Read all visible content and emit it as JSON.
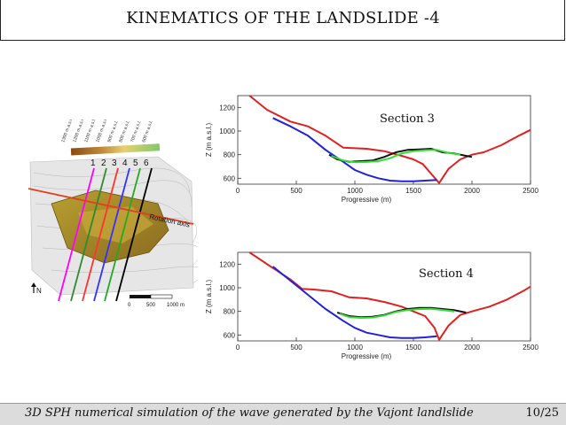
{
  "header": {
    "title": "KINEMATICS OF THE LANDSLIDE -4"
  },
  "footer": {
    "caption": "3D SPH numerical simulation of the wave generated by the Vajont landlslide",
    "page": "10/25"
  },
  "map": {
    "section_numbers": [
      "1",
      "2",
      "3",
      "4",
      "5",
      "6"
    ],
    "contour_labels": [
      "1300 m a.s.l.",
      "1200 m a.s.l.",
      "1100 m a.s.l.",
      "1000 m a.s.l.",
      "900 m a.s.l.",
      "800 m a.s.l.",
      "700 m a.s.l.",
      "600 m a.s.l."
    ],
    "rotation_axis_label": "Rotation axis",
    "north_label": "N",
    "scale_labels": [
      "0",
      "500",
      "1000 m"
    ],
    "line_colors": [
      "#ff00ff",
      "#2e8b2e",
      "#ff3333",
      "#3333ff",
      "#22aa22",
      "#000000"
    ]
  },
  "chart_data": [
    {
      "type": "line",
      "annotation": "Section 3",
      "xlabel": "Progressive (m)",
      "ylabel": "Z (m a.s.l.)",
      "xlim": [
        0,
        2500
      ],
      "ylim": [
        550,
        1300
      ],
      "xticks": [
        "0",
        "500",
        "1000",
        "1500",
        "2000",
        "2500"
      ],
      "yticks": [
        "600",
        "800",
        "1000",
        "1200"
      ],
      "series": [
        {
          "color": "#e02020",
          "x": [
            100,
            250,
            450,
            600,
            750,
            900,
            1100,
            1250,
            1400,
            1500,
            1580,
            1650,
            1720,
            1800,
            1900,
            2000,
            2100,
            2250,
            2400,
            2500
          ],
          "y": [
            1300,
            1180,
            1080,
            1040,
            960,
            860,
            850,
            830,
            790,
            760,
            720,
            640,
            560,
            680,
            760,
            800,
            820,
            880,
            960,
            1010
          ]
        },
        {
          "color": "#2020e0",
          "x": [
            300,
            450,
            600,
            750,
            900,
            1000,
            1100,
            1200,
            1300,
            1400,
            1500,
            1600,
            1700
          ],
          "y": [
            1110,
            1040,
            960,
            840,
            740,
            670,
            630,
            600,
            580,
            575,
            575,
            580,
            585
          ]
        },
        {
          "color": "#111111",
          "x": [
            780,
            850,
            950,
            1050,
            1150,
            1250,
            1350,
            1450,
            1550,
            1650,
            1750,
            1850,
            1950,
            2000
          ],
          "y": [
            800,
            760,
            740,
            745,
            750,
            780,
            820,
            840,
            845,
            850,
            820,
            810,
            790,
            780
          ]
        },
        {
          "color": "#33dd33",
          "x": [
            800,
            900,
            1000,
            1100,
            1200,
            1300,
            1400,
            1500,
            1600,
            1700,
            1800,
            1900
          ],
          "y": [
            790,
            750,
            735,
            738,
            745,
            770,
            810,
            830,
            838,
            840,
            815,
            800
          ]
        }
      ]
    },
    {
      "type": "line",
      "annotation": "Section 4",
      "xlabel": "Progressive (m)",
      "ylabel": "Z (m a.s.l.)",
      "xlim": [
        0,
        2500
      ],
      "ylim": [
        550,
        1300
      ],
      "xticks": [
        "0",
        "500",
        "1000",
        "1500",
        "2000",
        "2500"
      ],
      "yticks": [
        "600",
        "800",
        "1000",
        "1200"
      ],
      "series": [
        {
          "color": "#e02020",
          "x": [
            100,
            250,
            450,
            550,
            650,
            800,
            950,
            1100,
            1250,
            1400,
            1500,
            1600,
            1680,
            1720,
            1800,
            1900,
            2000,
            2150,
            2300,
            2450,
            2500
          ],
          "y": [
            1300,
            1200,
            1070,
            990,
            985,
            970,
            920,
            910,
            880,
            840,
            800,
            760,
            660,
            560,
            680,
            770,
            800,
            840,
            900,
            980,
            1010
          ]
        },
        {
          "color": "#2020e0",
          "x": [
            300,
            450,
            600,
            750,
            900,
            1000,
            1100,
            1200,
            1300,
            1400,
            1500,
            1600,
            1700
          ],
          "y": [
            1180,
            1060,
            940,
            820,
            720,
            660,
            620,
            600,
            580,
            575,
            575,
            580,
            590
          ]
        },
        {
          "color": "#111111",
          "x": [
            850,
            950,
            1050,
            1150,
            1250,
            1350,
            1450,
            1550,
            1650,
            1750,
            1850,
            1950
          ],
          "y": [
            790,
            760,
            750,
            755,
            770,
            800,
            820,
            830,
            830,
            820,
            810,
            790
          ]
        },
        {
          "color": "#33dd33",
          "x": [
            870,
            950,
            1050,
            1150,
            1250,
            1350,
            1450,
            1550,
            1650,
            1750,
            1850
          ],
          "y": [
            780,
            752,
            745,
            748,
            765,
            795,
            812,
            820,
            822,
            812,
            800
          ]
        }
      ]
    }
  ]
}
